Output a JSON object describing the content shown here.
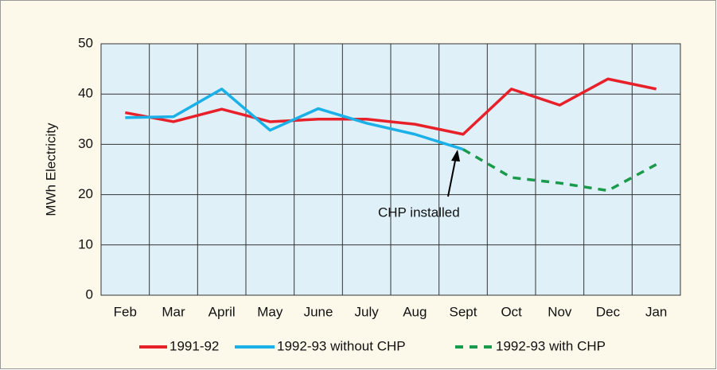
{
  "chart_data": {
    "type": "line",
    "y_label": "MWh Electricity",
    "categories": [
      "Feb",
      "Mar",
      "April",
      "May",
      "June",
      "July",
      "Aug",
      "Sept",
      "Oct",
      "Nov",
      "Dec",
      "Jan"
    ],
    "series": [
      {
        "name": "1991-92",
        "color": "#e8202a",
        "dash": false,
        "values": [
          36.3,
          34.5,
          37,
          34.5,
          35,
          35,
          34,
          32,
          41,
          37.8,
          43,
          41
        ]
      },
      {
        "name": "1992-93 without CHP",
        "color": "#1ab0e8",
        "dash": false,
        "values": [
          35.3,
          35.5,
          41,
          32.8,
          37.1,
          34.2,
          32,
          29,
          null,
          null,
          null,
          null
        ]
      },
      {
        "name": "1992-93 with CHP",
        "color": "#1a9a4a",
        "dash": true,
        "values": [
          null,
          null,
          null,
          null,
          null,
          null,
          null,
          29,
          23.4,
          22.3,
          20.8,
          26
        ]
      }
    ],
    "ylim": [
      0,
      50
    ],
    "yticks": [
      0,
      10,
      20,
      30,
      40,
      50
    ],
    "grid": true,
    "annotation": "CHP installed"
  }
}
